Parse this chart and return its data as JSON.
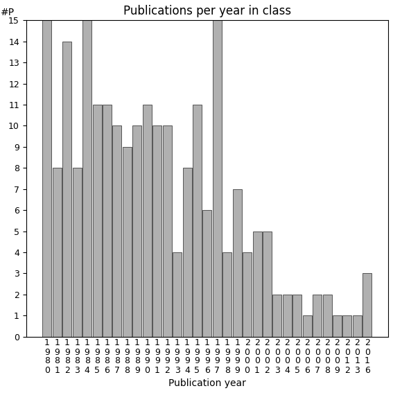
{
  "title": "Publications per year in class",
  "xlabel": "Publication year",
  "ylabel": "#P",
  "categories": [
    "1980",
    "1981",
    "1982",
    "1983",
    "1984",
    "1985",
    "1986",
    "1987",
    "1988",
    "1989",
    "1990",
    "1991",
    "1992",
    "1993",
    "1994",
    "1995",
    "1996",
    "1997",
    "1998",
    "1999",
    "2000",
    "2001",
    "2002",
    "2003",
    "2004",
    "2005",
    "2006",
    "2007",
    "2008",
    "2009",
    "2012",
    "2013",
    "2016"
  ],
  "values": [
    15,
    8,
    14,
    8,
    15,
    11,
    11,
    10,
    9,
    10,
    11,
    10,
    10,
    4,
    8,
    11,
    6,
    15,
    4,
    7,
    4,
    5,
    5,
    2,
    2,
    2,
    1,
    2,
    2,
    1,
    1,
    1,
    3
  ],
  "bar_color": "#b0b0b0",
  "bar_edge_color": "#404040",
  "ylim": [
    0,
    15
  ],
  "yticks": [
    0,
    1,
    2,
    3,
    4,
    5,
    6,
    7,
    8,
    9,
    10,
    11,
    12,
    13,
    14,
    15
  ],
  "background_color": "#ffffff",
  "title_fontsize": 12,
  "label_fontsize": 10,
  "tick_fontsize": 9
}
